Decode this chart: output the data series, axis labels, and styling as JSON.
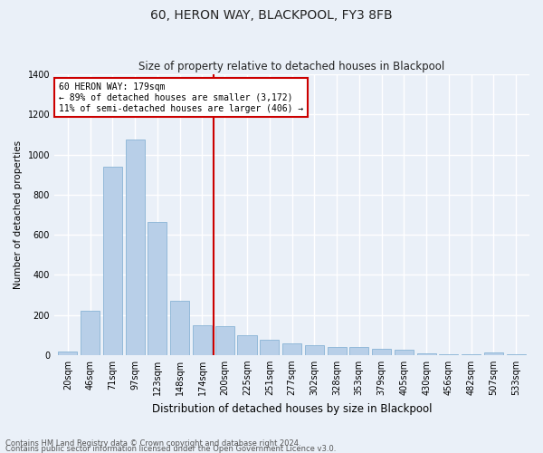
{
  "title": "60, HERON WAY, BLACKPOOL, FY3 8FB",
  "subtitle": "Size of property relative to detached houses in Blackpool",
  "xlabel": "Distribution of detached houses by size in Blackpool",
  "ylabel": "Number of detached properties",
  "categories": [
    "20sqm",
    "46sqm",
    "71sqm",
    "97sqm",
    "123sqm",
    "148sqm",
    "174sqm",
    "200sqm",
    "225sqm",
    "251sqm",
    "277sqm",
    "302sqm",
    "328sqm",
    "353sqm",
    "379sqm",
    "405sqm",
    "430sqm",
    "456sqm",
    "482sqm",
    "507sqm",
    "533sqm"
  ],
  "values": [
    18,
    220,
    940,
    1075,
    665,
    270,
    150,
    145,
    100,
    75,
    60,
    48,
    40,
    38,
    32,
    25,
    8,
    4,
    4,
    13,
    3
  ],
  "bar_color": "#b8cfe8",
  "bar_edge_color": "#7aaad0",
  "vline_color": "#cc0000",
  "vline_pos": 6.5,
  "annotation_text": "60 HERON WAY: 179sqm\n← 89% of detached houses are smaller (3,172)\n11% of semi-detached houses are larger (406) →",
  "annotation_box_color": "#ffffff",
  "annotation_box_edge": "#cc0000",
  "bg_color": "#eaf0f8",
  "plot_bg_color": "#eaf0f8",
  "grid_color": "#ffffff",
  "footer_line1": "Contains HM Land Registry data © Crown copyright and database right 2024.",
  "footer_line2": "Contains public sector information licensed under the Open Government Licence v3.0.",
  "ylim": [
    0,
    1400
  ],
  "yticks": [
    0,
    200,
    400,
    600,
    800,
    1000,
    1200,
    1400
  ],
  "title_fontsize": 10,
  "subtitle_fontsize": 8.5,
  "ylabel_fontsize": 7.5,
  "xlabel_fontsize": 8.5,
  "tick_fontsize": 7,
  "annotation_fontsize": 7,
  "footer_fontsize": 6
}
